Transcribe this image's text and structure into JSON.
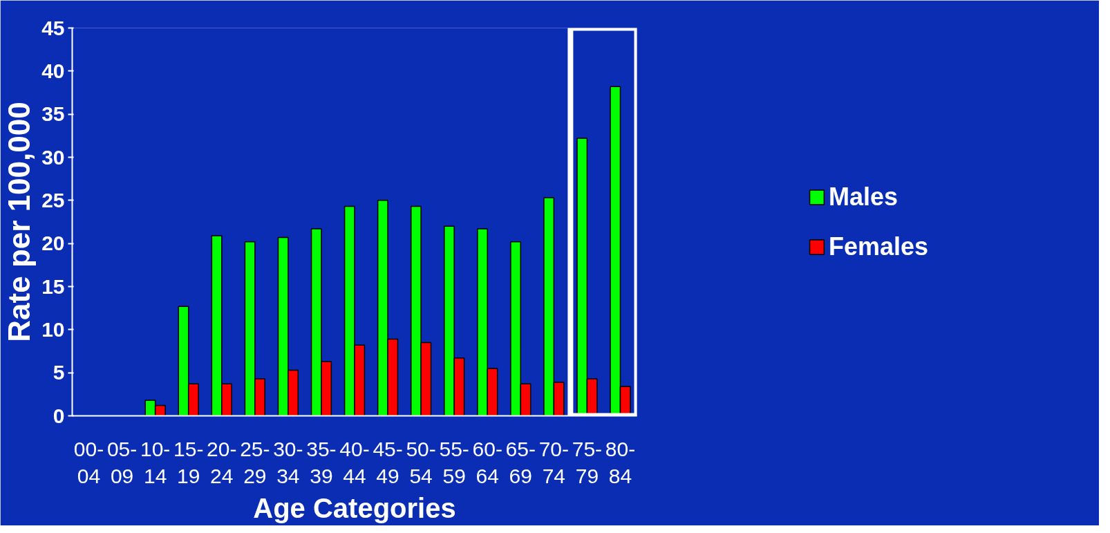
{
  "chart_data": {
    "type": "bar",
    "xlabel": "Age Categories",
    "ylabel": "Rate per 100,000",
    "categories": [
      "00-04",
      "05-09",
      "10-14",
      "15-19",
      "20-24",
      "25-29",
      "30-34",
      "35-39",
      "40-44",
      "45-49",
      "50-54",
      "55-59",
      "60-64",
      "65-69",
      "70-74",
      "75-79",
      "80-84"
    ],
    "series": [
      {
        "name": "Males",
        "color": "#00ff00",
        "values": [
          null,
          null,
          1.8,
          12.7,
          20.9,
          20.2,
          20.7,
          21.7,
          24.3,
          25.0,
          24.3,
          22.0,
          21.7,
          20.2,
          25.3,
          32.2,
          38.2
        ]
      },
      {
        "name": "Females",
        "color": "#ff0000",
        "values": [
          null,
          null,
          1.2,
          3.7,
          3.7,
          4.3,
          5.3,
          6.3,
          8.2,
          8.9,
          8.5,
          6.7,
          5.5,
          3.7,
          3.9,
          4.3,
          3.4
        ]
      }
    ],
    "ylim": [
      0,
      45
    ],
    "yticks": [
      0,
      5,
      10,
      15,
      20,
      25,
      30,
      35,
      40,
      45
    ],
    "grid": false,
    "legend": "right"
  }
}
